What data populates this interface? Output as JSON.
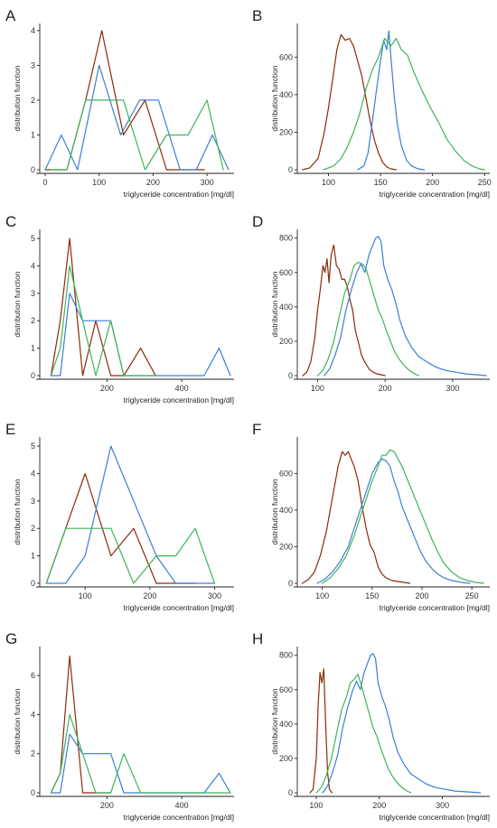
{
  "colors": {
    "dark_red": "#8b2a0a",
    "blue": "#3a7fd5",
    "green": "#3fb35a"
  },
  "chart_data": [
    {
      "panel": "A",
      "type": "line",
      "xlabel": "triglyceride concentration [mg/dl]",
      "ylabel": "distribution function",
      "xlim": [
        -10,
        350
      ],
      "ylim": [
        0,
        4.1
      ],
      "xticks": [
        0,
        100,
        200,
        300
      ],
      "yticks": [
        0,
        1,
        2,
        3,
        4
      ],
      "series": [
        {
          "color": "#8b2a0a",
          "x": [
            0,
            40,
            75,
            105,
            145,
            185,
            225,
            265,
            295
          ],
          "y": [
            0,
            0,
            2,
            4,
            1,
            2,
            0,
            0,
            0
          ]
        },
        {
          "color": "#3a7fd5",
          "x": [
            0,
            30,
            60,
            100,
            140,
            175,
            210,
            250,
            280,
            310,
            340
          ],
          "y": [
            0,
            1,
            0,
            3,
            1,
            2,
            2,
            0,
            0,
            1,
            0
          ]
        },
        {
          "color": "#3fb35a",
          "x": [
            10,
            40,
            75,
            105,
            145,
            185,
            225,
            265,
            300,
            330
          ],
          "y": [
            0,
            0,
            2,
            2,
            2,
            0,
            1,
            1,
            2,
            0
          ]
        }
      ]
    },
    {
      "panel": "B",
      "type": "line",
      "xlabel": "triglyceride concentration [mg/dl]",
      "ylabel": "distribution function",
      "xlim": [
        70,
        255
      ],
      "ylim": [
        0,
        760
      ],
      "xticks": [
        100,
        150,
        200,
        250
      ],
      "yticks": [
        0,
        200,
        400,
        600
      ],
      "series": [
        {
          "color": "#8b2a0a",
          "x": [
            75,
            82,
            90,
            96,
            100,
            104,
            108,
            112,
            116,
            120,
            124,
            128,
            132,
            136,
            140,
            144,
            148,
            152,
            156,
            160,
            165
          ],
          "y": [
            0,
            10,
            60,
            200,
            330,
            480,
            640,
            720,
            690,
            700,
            660,
            580,
            500,
            380,
            260,
            160,
            90,
            40,
            15,
            5,
            0
          ]
        },
        {
          "color": "#3a7fd5",
          "x": [
            128,
            134,
            138,
            142,
            146,
            150,
            153,
            156,
            158,
            160,
            163,
            166,
            170,
            175,
            180,
            186,
            192
          ],
          "y": [
            0,
            20,
            90,
            250,
            420,
            580,
            690,
            640,
            740,
            600,
            400,
            250,
            130,
            50,
            20,
            5,
            0
          ]
        },
        {
          "color": "#3fb35a",
          "x": [
            95,
            105,
            112,
            118,
            124,
            130,
            136,
            142,
            148,
            154,
            160,
            165,
            170,
            176,
            182,
            190,
            198,
            206,
            214,
            222,
            230,
            238,
            245,
            250
          ],
          "y": [
            0,
            20,
            60,
            120,
            200,
            300,
            430,
            530,
            600,
            700,
            660,
            700,
            640,
            610,
            520,
            420,
            330,
            250,
            160,
            100,
            50,
            20,
            5,
            0
          ]
        }
      ]
    },
    {
      "panel": "C",
      "type": "line",
      "xlabel": "triglyceride concentration [mg/dl]",
      "ylabel": "distribution function",
      "xlim": [
        20,
        540
      ],
      "ylim": [
        0,
        5.2
      ],
      "xticks": [
        200,
        400
      ],
      "yticks": [
        0,
        1,
        2,
        3,
        4,
        5
      ],
      "series": [
        {
          "color": "#8b2a0a",
          "x": [
            50,
            75,
            100,
            135,
            170,
            210,
            245,
            290,
            330
          ],
          "y": [
            0,
            2,
            5,
            0,
            2,
            0,
            0,
            1,
            0
          ]
        },
        {
          "color": "#3a7fd5",
          "x": [
            50,
            75,
            100,
            135,
            170,
            210,
            245,
            290,
            330,
            370,
            420,
            460,
            500,
            530
          ],
          "y": [
            0,
            0,
            3,
            2,
            2,
            2,
            0,
            0,
            0,
            0,
            0,
            0,
            1,
            0
          ]
        },
        {
          "color": "#3fb35a",
          "x": [
            50,
            75,
            100,
            135,
            170,
            210,
            245,
            290,
            330
          ],
          "y": [
            0,
            1,
            4,
            2,
            0,
            2,
            0,
            0,
            0
          ]
        }
      ]
    },
    {
      "panel": "D",
      "type": "line",
      "xlabel": "",
      "ylabel": "distribution function",
      "xlim": [
        70,
        355
      ],
      "ylim": [
        0,
        830
      ],
      "xticks": [
        100,
        200,
        300
      ],
      "yticks": [
        0,
        200,
        400,
        600,
        800
      ],
      "series": [
        {
          "color": "#8b2a0a",
          "x": [
            78,
            84,
            90,
            96,
            100,
            104,
            108,
            111,
            114,
            117,
            120,
            124,
            128,
            132,
            136,
            140,
            144,
            148,
            152,
            156,
            160,
            165,
            170,
            176,
            182,
            188,
            194,
            200
          ],
          "y": [
            0,
            20,
            80,
            220,
            380,
            500,
            640,
            600,
            680,
            540,
            700,
            760,
            640,
            620,
            560,
            560,
            520,
            440,
            380,
            260,
            200,
            120,
            80,
            40,
            20,
            10,
            5,
            0
          ]
        },
        {
          "color": "#3a7fd5",
          "x": [
            110,
            118,
            126,
            134,
            142,
            150,
            158,
            164,
            170,
            176,
            182,
            186,
            190,
            194,
            198,
            204,
            210,
            216,
            222,
            230,
            240,
            250,
            262,
            275,
            290,
            305,
            320,
            335,
            350
          ],
          "y": [
            0,
            40,
            120,
            220,
            380,
            500,
            600,
            650,
            600,
            700,
            760,
            800,
            810,
            780,
            640,
            560,
            500,
            420,
            320,
            230,
            160,
            110,
            80,
            50,
            30,
            20,
            10,
            5,
            0
          ]
        },
        {
          "color": "#3fb35a",
          "x": [
            100,
            108,
            116,
            124,
            132,
            140,
            148,
            154,
            160,
            166,
            172,
            178,
            184,
            190,
            196,
            202,
            208,
            214,
            220,
            228,
            236,
            244,
            250
          ],
          "y": [
            0,
            30,
            100,
            200,
            340,
            480,
            560,
            640,
            660,
            650,
            620,
            540,
            460,
            380,
            330,
            260,
            200,
            140,
            100,
            60,
            30,
            10,
            0
          ]
        }
      ]
    },
    {
      "panel": "E",
      "type": "line",
      "xlabel": "triglyceride concentration [mg/dl]",
      "ylabel": "distribution function",
      "xlim": [
        30,
        330
      ],
      "ylim": [
        0,
        5.2
      ],
      "xticks": [
        100,
        200,
        300
      ],
      "yticks": [
        0,
        1,
        2,
        3,
        4,
        5
      ],
      "series": [
        {
          "color": "#8b2a0a",
          "x": [
            40,
            70,
            100,
            140,
            175,
            210,
            240,
            270
          ],
          "y": [
            0,
            2,
            4,
            1,
            2,
            0,
            0,
            0
          ]
        },
        {
          "color": "#3a7fd5",
          "x": [
            40,
            70,
            100,
            140,
            175,
            210,
            240,
            270,
            300
          ],
          "y": [
            0,
            0,
            1,
            5,
            3,
            1,
            0,
            0,
            0
          ]
        },
        {
          "color": "#3fb35a",
          "x": [
            40,
            70,
            100,
            140,
            175,
            210,
            240,
            270,
            300
          ],
          "y": [
            0,
            2,
            2,
            2,
            0,
            1,
            1,
            2,
            0
          ]
        }
      ]
    },
    {
      "panel": "F",
      "type": "line",
      "xlabel": "triglyceride concentration [mg/dl]",
      "ylabel": "distribution function",
      "xlim": [
        75,
        268
      ],
      "ylim": [
        0,
        780
      ],
      "xticks": [
        100,
        150,
        200,
        250
      ],
      "yticks": [
        0,
        200,
        400,
        600
      ],
      "series": [
        {
          "color": "#8b2a0a",
          "x": [
            80,
            86,
            92,
            98,
            104,
            108,
            112,
            116,
            120,
            123,
            126,
            129,
            132,
            136,
            140,
            144,
            148,
            152,
            156,
            160,
            164,
            170,
            176,
            182,
            188
          ],
          "y": [
            0,
            20,
            60,
            150,
            280,
            400,
            520,
            640,
            720,
            700,
            720,
            680,
            640,
            560,
            420,
            300,
            210,
            170,
            90,
            50,
            30,
            15,
            10,
            5,
            0
          ]
        },
        {
          "color": "#3a7fd5",
          "x": [
            95,
            102,
            110,
            118,
            126,
            132,
            138,
            144,
            150,
            156,
            160,
            164,
            168,
            172,
            176,
            180,
            186,
            192,
            198,
            204,
            210,
            216,
            222,
            230,
            240,
            248
          ],
          "y": [
            0,
            20,
            60,
            120,
            200,
            300,
            400,
            500,
            600,
            660,
            680,
            670,
            640,
            560,
            500,
            420,
            340,
            260,
            180,
            120,
            80,
            50,
            30,
            15,
            5,
            0
          ]
        },
        {
          "color": "#3fb35a",
          "x": [
            100,
            108,
            116,
            124,
            132,
            138,
            144,
            150,
            156,
            160,
            164,
            168,
            172,
            176,
            180,
            186,
            192,
            198,
            204,
            210,
            216,
            222,
            230,
            238,
            246,
            254,
            262
          ],
          "y": [
            0,
            30,
            80,
            150,
            260,
            360,
            460,
            560,
            640,
            700,
            700,
            730,
            720,
            680,
            640,
            560,
            480,
            400,
            320,
            240,
            170,
            110,
            60,
            30,
            15,
            5,
            0
          ]
        }
      ]
    },
    {
      "panel": "G",
      "type": "line",
      "xlabel": "triglyceride concentration [mg/dl]",
      "ylabel": "distribution function",
      "xlim": [
        20,
        540
      ],
      "ylim": [
        0,
        7.3
      ],
      "xticks": [
        200,
        400
      ],
      "yticks": [
        0,
        2,
        4,
        6
      ],
      "series": [
        {
          "color": "#8b2a0a",
          "x": [
            50,
            75,
            100,
            135,
            170,
            210
          ],
          "y": [
            0,
            1,
            7,
            0,
            0,
            0
          ]
        },
        {
          "color": "#3a7fd5",
          "x": [
            50,
            75,
            100,
            135,
            170,
            210,
            245,
            290,
            330,
            370,
            420,
            460,
            500,
            530
          ],
          "y": [
            0,
            0,
            3,
            2,
            2,
            2,
            0,
            0,
            0,
            0,
            0,
            0,
            1,
            0
          ]
        },
        {
          "color": "#3fb35a",
          "x": [
            50,
            75,
            100,
            135,
            170,
            210,
            245,
            290,
            330,
            370,
            420,
            460,
            500,
            530
          ],
          "y": [
            0,
            1,
            4,
            2,
            0,
            0,
            2,
            0,
            0,
            0,
            0,
            0,
            0,
            0
          ]
        }
      ]
    },
    {
      "panel": "H",
      "type": "line",
      "xlabel": "triglyceride concentration [mg/dl]",
      "ylabel": "distribution function",
      "xlim": [
        70,
        375
      ],
      "ylim": [
        0,
        830
      ],
      "xticks": [
        100,
        200,
        300
      ],
      "yticks": [
        0,
        200,
        400,
        600,
        800
      ],
      "series": [
        {
          "color": "#8b2a0a",
          "x": [
            90,
            95,
            100,
            103,
            106,
            109,
            112,
            115,
            118,
            121,
            125
          ],
          "y": [
            0,
            20,
            200,
            500,
            700,
            640,
            720,
            400,
            120,
            20,
            0
          ]
        },
        {
          "color": "#3a7fd5",
          "x": [
            110,
            118,
            126,
            134,
            142,
            150,
            158,
            164,
            170,
            176,
            182,
            186,
            190,
            194,
            198,
            204,
            210,
            216,
            222,
            230,
            240,
            250,
            262,
            275,
            290,
            305,
            320,
            340,
            360
          ],
          "y": [
            0,
            40,
            120,
            220,
            380,
            500,
            600,
            650,
            600,
            700,
            760,
            800,
            810,
            780,
            640,
            560,
            500,
            420,
            320,
            230,
            160,
            110,
            80,
            50,
            30,
            20,
            10,
            5,
            0
          ]
        },
        {
          "color": "#3fb35a",
          "x": [
            100,
            108,
            116,
            124,
            132,
            140,
            148,
            154,
            160,
            166,
            172,
            178,
            184,
            190,
            196,
            202,
            208,
            214,
            220,
            228,
            236,
            244,
            250
          ],
          "y": [
            0,
            30,
            100,
            200,
            340,
            480,
            560,
            640,
            660,
            690,
            620,
            540,
            460,
            380,
            330,
            260,
            200,
            140,
            100,
            60,
            30,
            10,
            0
          ]
        }
      ]
    }
  ]
}
